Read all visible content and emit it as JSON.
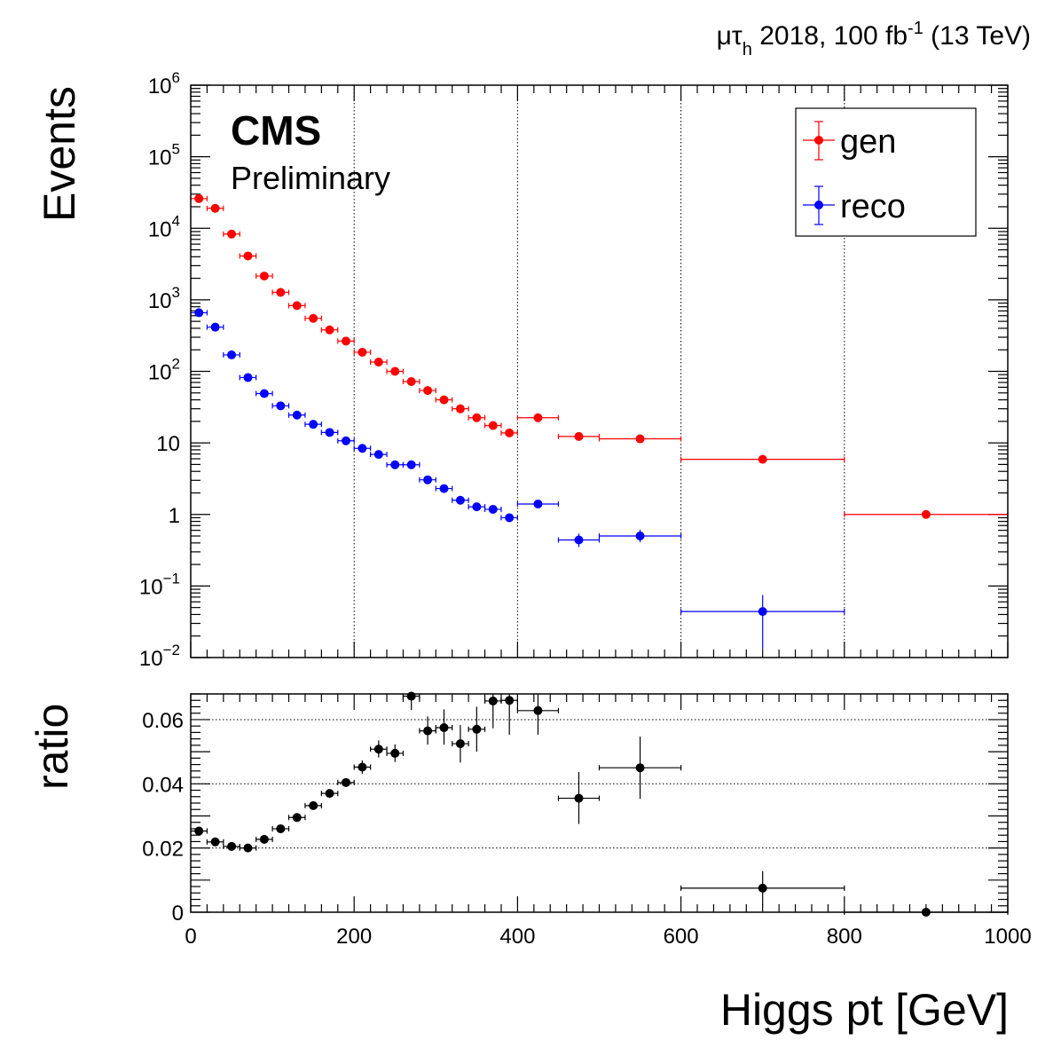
{
  "header": {
    "lumi_label_prefix": "μτ",
    "lumi_label_sub": "h",
    "lumi_label_mid": " 2018, 100 fb",
    "lumi_label_sup": "-1",
    "lumi_label_suffix": " (13 TeV)"
  },
  "cms_label": "CMS",
  "preliminary_label": "Preliminary",
  "chart_data": [
    {
      "type": "scatter",
      "panel": "top",
      "ylabel": "Events",
      "xlim": [
        0,
        1000
      ],
      "ylim": [
        0.01,
        1000000
      ],
      "yscale": "log",
      "grid": "vertical-x",
      "legend_placement": "top-right",
      "y_tick_labels": [
        {
          "value": 0.01,
          "base": "10",
          "exp": "−2"
        },
        {
          "value": 0.1,
          "base": "10",
          "exp": "−1"
        },
        {
          "value": 1,
          "base": "1",
          "exp": ""
        },
        {
          "value": 10,
          "base": "10",
          "exp": ""
        },
        {
          "value": 100,
          "base": "10",
          "exp": "2"
        },
        {
          "value": 1000,
          "base": "10",
          "exp": "3"
        },
        {
          "value": 10000,
          "base": "10",
          "exp": "4"
        },
        {
          "value": 100000,
          "base": "10",
          "exp": "5"
        },
        {
          "value": 1000000,
          "base": "10",
          "exp": "6"
        }
      ],
      "series": [
        {
          "name": "gen",
          "color": "#ff0000",
          "points": [
            {
              "x": 10,
              "xlo": 0,
              "xhi": 20,
              "y": 26000
            },
            {
              "x": 30,
              "xlo": 20,
              "xhi": 40,
              "y": 19000
            },
            {
              "x": 50,
              "xlo": 40,
              "xhi": 60,
              "y": 8300
            },
            {
              "x": 70,
              "xlo": 60,
              "xhi": 80,
              "y": 4100
            },
            {
              "x": 90,
              "xlo": 80,
              "xhi": 100,
              "y": 2150
            },
            {
              "x": 110,
              "xlo": 100,
              "xhi": 120,
              "y": 1270
            },
            {
              "x": 130,
              "xlo": 120,
              "xhi": 140,
              "y": 830
            },
            {
              "x": 150,
              "xlo": 140,
              "xhi": 160,
              "y": 550
            },
            {
              "x": 170,
              "xlo": 160,
              "xhi": 180,
              "y": 380
            },
            {
              "x": 190,
              "xlo": 180,
              "xhi": 200,
              "y": 265
            },
            {
              "x": 210,
              "xlo": 200,
              "xhi": 220,
              "y": 185
            },
            {
              "x": 230,
              "xlo": 220,
              "xhi": 240,
              "y": 135
            },
            {
              "x": 250,
              "xlo": 240,
              "xhi": 260,
              "y": 100
            },
            {
              "x": 270,
              "xlo": 260,
              "xhi": 280,
              "y": 72
            },
            {
              "x": 290,
              "xlo": 280,
              "xhi": 300,
              "y": 54
            },
            {
              "x": 310,
              "xlo": 300,
              "xhi": 320,
              "y": 40
            },
            {
              "x": 330,
              "xlo": 320,
              "xhi": 340,
              "y": 30
            },
            {
              "x": 350,
              "xlo": 340,
              "xhi": 360,
              "y": 22.5
            },
            {
              "x": 370,
              "xlo": 360,
              "xhi": 380,
              "y": 17.5
            },
            {
              "x": 390,
              "xlo": 380,
              "xhi": 400,
              "y": 13.8
            },
            {
              "x": 425,
              "xlo": 400,
              "xhi": 450,
              "y": 22.5
            },
            {
              "x": 475,
              "xlo": 450,
              "xhi": 500,
              "y": 12.3
            },
            {
              "x": 550,
              "xlo": 500,
              "xhi": 600,
              "y": 11.4
            },
            {
              "x": 700,
              "xlo": 600,
              "xhi": 800,
              "y": 5.9
            },
            {
              "x": 900,
              "xlo": 800,
              "xhi": 1000,
              "y": 1.0
            }
          ]
        },
        {
          "name": "reco",
          "color": "#0000ff",
          "points": [
            {
              "x": 10,
              "xlo": 0,
              "xhi": 20,
              "y": 660
            },
            {
              "x": 30,
              "xlo": 20,
              "xhi": 40,
              "y": 415
            },
            {
              "x": 50,
              "xlo": 40,
              "xhi": 60,
              "y": 170
            },
            {
              "x": 70,
              "xlo": 60,
              "xhi": 80,
              "y": 82
            },
            {
              "x": 90,
              "xlo": 80,
              "xhi": 100,
              "y": 49
            },
            {
              "x": 110,
              "xlo": 100,
              "xhi": 120,
              "y": 33
            },
            {
              "x": 130,
              "xlo": 120,
              "xhi": 140,
              "y": 24.5
            },
            {
              "x": 150,
              "xlo": 140,
              "xhi": 160,
              "y": 18.2
            },
            {
              "x": 170,
              "xlo": 160,
              "xhi": 180,
              "y": 14.0
            },
            {
              "x": 190,
              "xlo": 180,
              "xhi": 200,
              "y": 10.7
            },
            {
              "x": 210,
              "xlo": 200,
              "xhi": 220,
              "y": 8.4
            },
            {
              "x": 230,
              "xlo": 220,
              "xhi": 240,
              "y": 6.9
            },
            {
              "x": 250,
              "xlo": 240,
              "xhi": 260,
              "y": 4.95
            },
            {
              "x": 270,
              "xlo": 260,
              "xhi": 280,
              "y": 4.95
            },
            {
              "x": 290,
              "xlo": 280,
              "xhi": 300,
              "y": 3.05
            },
            {
              "x": 310,
              "xlo": 300,
              "xhi": 320,
              "y": 2.3
            },
            {
              "x": 330,
              "xlo": 320,
              "xhi": 340,
              "y": 1.58
            },
            {
              "x": 350,
              "xlo": 340,
              "xhi": 360,
              "y": 1.28
            },
            {
              "x": 370,
              "xlo": 360,
              "xhi": 380,
              "y": 1.18
            },
            {
              "x": 390,
              "xlo": 380,
              "xhi": 400,
              "y": 0.9,
              "ylo": 0.78,
              "yhi": 1.03
            },
            {
              "x": 425,
              "xlo": 400,
              "xhi": 450,
              "y": 1.4
            },
            {
              "x": 475,
              "xlo": 450,
              "xhi": 500,
              "y": 0.44,
              "ylo": 0.35,
              "yhi": 0.54
            },
            {
              "x": 550,
              "xlo": 500,
              "xhi": 600,
              "y": 0.5,
              "ylo": 0.41,
              "yhi": 0.61
            },
            {
              "x": 700,
              "xlo": 600,
              "xhi": 800,
              "y": 0.044,
              "ylo": 0.013,
              "yhi": 0.075
            }
          ]
        }
      ]
    },
    {
      "type": "scatter",
      "panel": "bottom",
      "xlabel": "Higgs pt [GeV]",
      "ylabel": "ratio",
      "xlim": [
        0,
        1000
      ],
      "ylim": [
        0,
        0.068
      ],
      "x_ticks": [
        0,
        200,
        400,
        600,
        800,
        1000
      ],
      "x_tick_labels": [
        "0",
        "200",
        "400",
        "600",
        "800",
        "1000"
      ],
      "y_ticks": [
        0,
        0.02,
        0.04,
        0.06
      ],
      "y_tick_labels": [
        "0",
        "0.02",
        "0.04",
        "0.06"
      ],
      "grid": "horizontal-y",
      "series": [
        {
          "color": "#000000",
          "points": [
            {
              "x": 10,
              "xlo": 0,
              "xhi": 20,
              "y": 0.0253
            },
            {
              "x": 30,
              "xlo": 20,
              "xhi": 40,
              "y": 0.0219
            },
            {
              "x": 50,
              "xlo": 40,
              "xhi": 60,
              "y": 0.0205
            },
            {
              "x": 70,
              "xlo": 60,
              "xhi": 80,
              "y": 0.02
            },
            {
              "x": 90,
              "xlo": 80,
              "xhi": 100,
              "y": 0.0227
            },
            {
              "x": 110,
              "xlo": 100,
              "xhi": 120,
              "y": 0.026
            },
            {
              "x": 130,
              "xlo": 120,
              "xhi": 140,
              "y": 0.0295
            },
            {
              "x": 150,
              "xlo": 140,
              "xhi": 160,
              "y": 0.0332
            },
            {
              "x": 170,
              "xlo": 160,
              "xhi": 180,
              "y": 0.037
            },
            {
              "x": 190,
              "xlo": 180,
              "xhi": 200,
              "y": 0.0404
            },
            {
              "x": 210,
              "xlo": 200,
              "xhi": 220,
              "y": 0.0452,
              "ylo": 0.0431,
              "yhi": 0.0473
            },
            {
              "x": 230,
              "xlo": 220,
              "xhi": 240,
              "y": 0.0508,
              "ylo": 0.0482,
              "yhi": 0.0535
            },
            {
              "x": 250,
              "xlo": 240,
              "xhi": 260,
              "y": 0.0495,
              "ylo": 0.0468,
              "yhi": 0.0523
            },
            {
              "x": 270,
              "xlo": 260,
              "xhi": 280,
              "y": 0.0673,
              "ylo": 0.063,
              "yhi": 0.068
            },
            {
              "x": 290,
              "xlo": 280,
              "xhi": 300,
              "y": 0.0565,
              "ylo": 0.0522,
              "yhi": 0.061
            },
            {
              "x": 310,
              "xlo": 300,
              "xhi": 320,
              "y": 0.0575,
              "ylo": 0.0522,
              "yhi": 0.0632
            },
            {
              "x": 330,
              "xlo": 320,
              "xhi": 340,
              "y": 0.0525,
              "ylo": 0.0466,
              "yhi": 0.0583
            },
            {
              "x": 350,
              "xlo": 340,
              "xhi": 360,
              "y": 0.057,
              "ylo": 0.05,
              "yhi": 0.064
            },
            {
              "x": 370,
              "xlo": 360,
              "xhi": 380,
              "y": 0.0658,
              "ylo": 0.0573,
              "yhi": 0.068
            },
            {
              "x": 390,
              "xlo": 380,
              "xhi": 400,
              "y": 0.066,
              "ylo": 0.0553,
              "yhi": 0.068
            },
            {
              "x": 425,
              "xlo": 400,
              "xhi": 450,
              "y": 0.0628,
              "ylo": 0.0553,
              "yhi": 0.068
            },
            {
              "x": 475,
              "xlo": 450,
              "xhi": 500,
              "y": 0.0355,
              "ylo": 0.0275,
              "yhi": 0.0437
            },
            {
              "x": 550,
              "xlo": 500,
              "xhi": 600,
              "y": 0.045,
              "ylo": 0.0353,
              "yhi": 0.0547
            },
            {
              "x": 700,
              "xlo": 600,
              "xhi": 800,
              "y": 0.0075,
              "ylo": 0.0022,
              "yhi": 0.0128
            },
            {
              "x": 900,
              "xlo": 800,
              "xhi": 1000,
              "y": 0.0
            }
          ]
        }
      ]
    }
  ]
}
